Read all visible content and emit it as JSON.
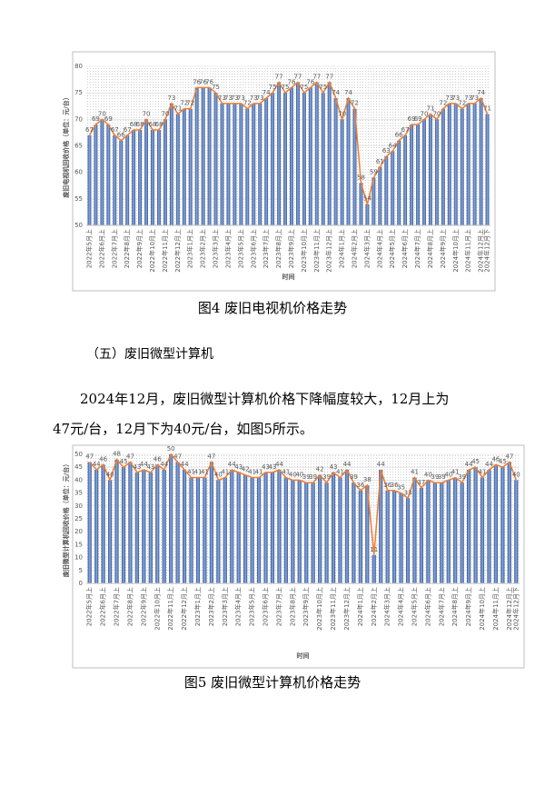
{
  "chart_data": [
    {
      "type": "bar",
      "y_label": "废旧电视机回收价格（单位：元/台）",
      "x_label": "时间",
      "color": "#4472c4",
      "line_color": "#ed7d31",
      "grid": true,
      "ylim": [
        50,
        80
      ],
      "yticks": [
        50,
        55,
        60,
        65,
        70,
        75,
        80
      ],
      "categories": [
        "2022年5月上",
        null,
        "2022年6月上",
        null,
        "2022年7月上",
        null,
        "2022年8月上",
        null,
        "2022年9月上",
        null,
        "2022年10月上",
        null,
        "2022年11月上",
        null,
        "2022年12月上",
        null,
        "2023年1月上",
        null,
        "2023年2月上",
        null,
        "2023年3月上",
        null,
        "2023年4月上",
        null,
        "2023年5月上",
        null,
        "2023年6月上",
        null,
        "2023年7月上",
        null,
        "2023年8月上",
        null,
        "2023年9月上",
        null,
        "2023年10月上",
        null,
        "2023年11月上",
        null,
        "2023年12月上",
        null,
        "2024年1月上",
        null,
        "2024年2月上",
        null,
        "2024年3月上",
        null,
        "2024年4月上",
        null,
        "2024年5月上",
        null,
        "2024年6月上",
        null,
        "2024年7月上",
        null,
        "2024年8月上",
        null,
        "2024年9月上",
        null,
        "2024年10月上",
        null,
        "2024年11月上",
        null,
        "2024年12月上",
        "2024年12月下"
      ],
      "values": [
        67,
        69,
        70,
        69,
        67,
        66,
        67,
        68,
        68,
        70,
        68,
        68,
        70,
        73,
        71,
        72,
        72,
        76,
        76,
        76,
        75,
        73,
        73,
        73,
        73,
        72,
        73,
        73,
        74,
        75,
        77,
        75,
        76,
        77,
        75,
        76,
        77,
        75,
        77,
        74,
        70,
        74,
        72,
        58,
        54,
        59,
        61,
        63,
        64,
        66,
        67,
        69,
        69,
        70,
        71,
        70,
        72,
        73,
        73,
        72,
        73,
        73,
        74,
        71
      ]
    },
    {
      "type": "bar",
      "y_label": "废旧微型计算机回收价格（单位：元/台）",
      "x_label": "时间",
      "color": "#4472c4",
      "line_color": "#ed7d31",
      "grid": true,
      "ylim": [
        0,
        50
      ],
      "yticks": [
        0,
        5,
        10,
        15,
        20,
        25,
        30,
        35,
        40,
        45,
        50
      ],
      "categories": [
        "2022年5月上",
        null,
        "2022年6月上",
        null,
        "2022年7月上",
        null,
        "2022年8月上",
        null,
        "2022年9月上",
        null,
        "2022年10月上",
        null,
        "2022年11月上",
        null,
        "2022年12月上",
        null,
        "2023年1月上",
        null,
        "2023年2月上",
        null,
        "2023年3月上",
        null,
        "2023年4月上",
        null,
        "2023年5月上",
        null,
        "2023年6月上",
        null,
        "2023年7月上",
        null,
        "2023年8月上",
        null,
        "2023年9月上",
        null,
        "2023年10月上",
        null,
        "2023年11月上",
        null,
        "2023年12月上",
        null,
        "2024年1月上",
        null,
        "2024年2月上",
        null,
        "2024年3月上",
        null,
        "2024年4月上",
        null,
        "2024年5月上",
        null,
        "2024年6月上",
        null,
        "2024年7月上",
        null,
        "2024年8月上",
        null,
        "2024年9月上",
        null,
        "2024年10月上",
        null,
        "2024年11月上",
        null,
        "2024年12月上",
        "2024年12月下"
      ],
      "values": [
        47,
        44,
        46,
        40,
        48,
        45,
        47,
        43,
        44,
        43,
        46,
        44,
        50,
        47,
        44,
        41,
        41,
        41,
        47,
        40,
        41,
        44,
        43,
        42,
        41,
        41,
        43,
        43,
        44,
        41,
        40,
        40,
        39,
        39,
        42,
        39,
        43,
        41,
        44,
        39,
        36,
        38,
        11,
        44,
        36,
        36,
        35,
        33,
        41,
        37,
        40,
        39,
        39,
        40,
        41,
        39,
        44,
        45,
        41,
        44,
        46,
        45,
        47,
        40
      ]
    }
  ],
  "document": {
    "caption_4": "图4  废旧电视机价格走势",
    "heading": "（五）废旧微型计算机",
    "paragraph": [
      "2024年12月，废旧微型计算机价格下降幅度较大，12月上为",
      "47元/台，12月下为40元/台，如图5所示。"
    ],
    "caption_5": "图5  废旧微型计算机价格走势"
  }
}
